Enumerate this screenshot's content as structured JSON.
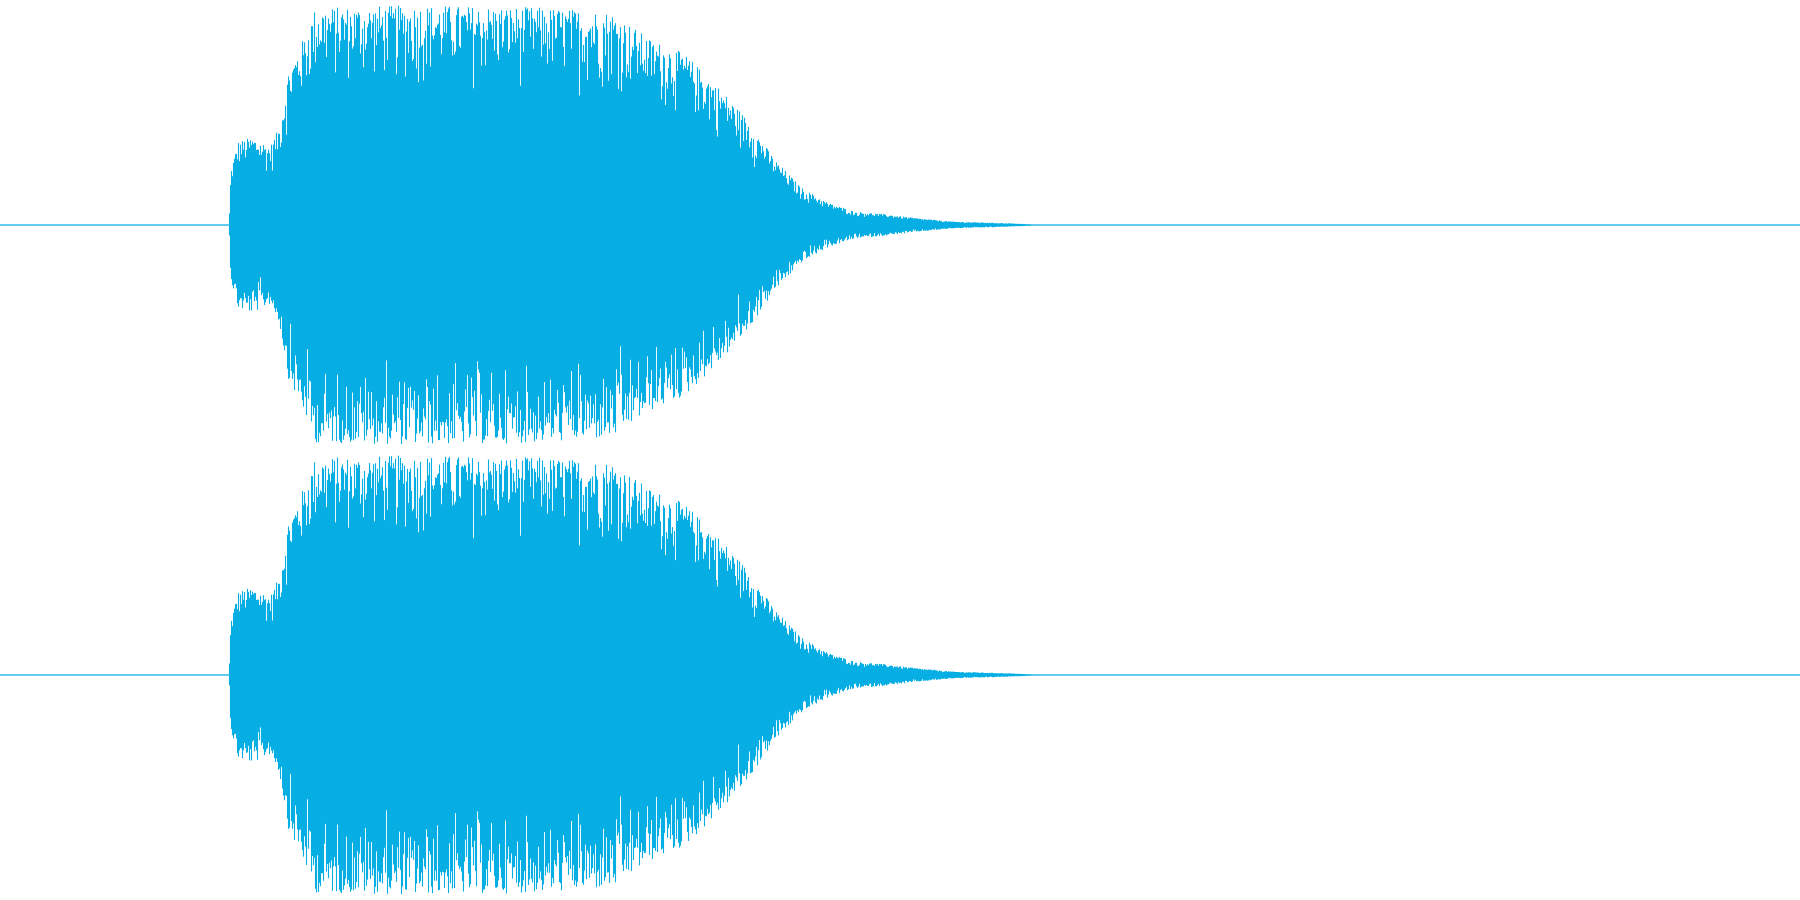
{
  "waveform": {
    "channels": [
      {
        "name": "top-channel",
        "envelope": [
          [
            0.0,
            0.0
          ],
          [
            0.127,
            0.0
          ],
          [
            0.128,
            0.25
          ],
          [
            0.132,
            0.38
          ],
          [
            0.14,
            0.4
          ],
          [
            0.15,
            0.36
          ],
          [
            0.155,
            0.45
          ],
          [
            0.16,
            0.7
          ],
          [
            0.17,
            0.88
          ],
          [
            0.175,
            0.99
          ],
          [
            0.23,
            1.0
          ],
          [
            0.3,
            0.99
          ],
          [
            0.34,
            0.97
          ],
          [
            0.36,
            0.85
          ],
          [
            0.38,
            0.78
          ],
          [
            0.4,
            0.62
          ],
          [
            0.415,
            0.48
          ],
          [
            0.43,
            0.3
          ],
          [
            0.445,
            0.17
          ],
          [
            0.46,
            0.1
          ],
          [
            0.475,
            0.06
          ],
          [
            0.49,
            0.05
          ],
          [
            0.51,
            0.03
          ],
          [
            0.53,
            0.015
          ],
          [
            0.56,
            0.008
          ],
          [
            0.58,
            0.0
          ],
          [
            1.0,
            0.0
          ]
        ]
      },
      {
        "name": "bottom-channel",
        "envelope": [
          [
            0.0,
            0.0
          ],
          [
            0.127,
            0.0
          ],
          [
            0.128,
            0.25
          ],
          [
            0.132,
            0.38
          ],
          [
            0.14,
            0.4
          ],
          [
            0.15,
            0.36
          ],
          [
            0.155,
            0.45
          ],
          [
            0.16,
            0.7
          ],
          [
            0.17,
            0.88
          ],
          [
            0.175,
            0.99
          ],
          [
            0.23,
            1.0
          ],
          [
            0.3,
            0.99
          ],
          [
            0.34,
            0.97
          ],
          [
            0.36,
            0.85
          ],
          [
            0.38,
            0.78
          ],
          [
            0.4,
            0.62
          ],
          [
            0.415,
            0.48
          ],
          [
            0.43,
            0.3
          ],
          [
            0.445,
            0.17
          ],
          [
            0.46,
            0.1
          ],
          [
            0.475,
            0.06
          ],
          [
            0.49,
            0.05
          ],
          [
            0.51,
            0.03
          ],
          [
            0.53,
            0.015
          ],
          [
            0.56,
            0.008
          ],
          [
            0.58,
            0.0
          ],
          [
            1.0,
            0.0
          ]
        ]
      }
    ],
    "colors": {
      "background": "#ffffff",
      "wave": "#07aee3"
    }
  }
}
